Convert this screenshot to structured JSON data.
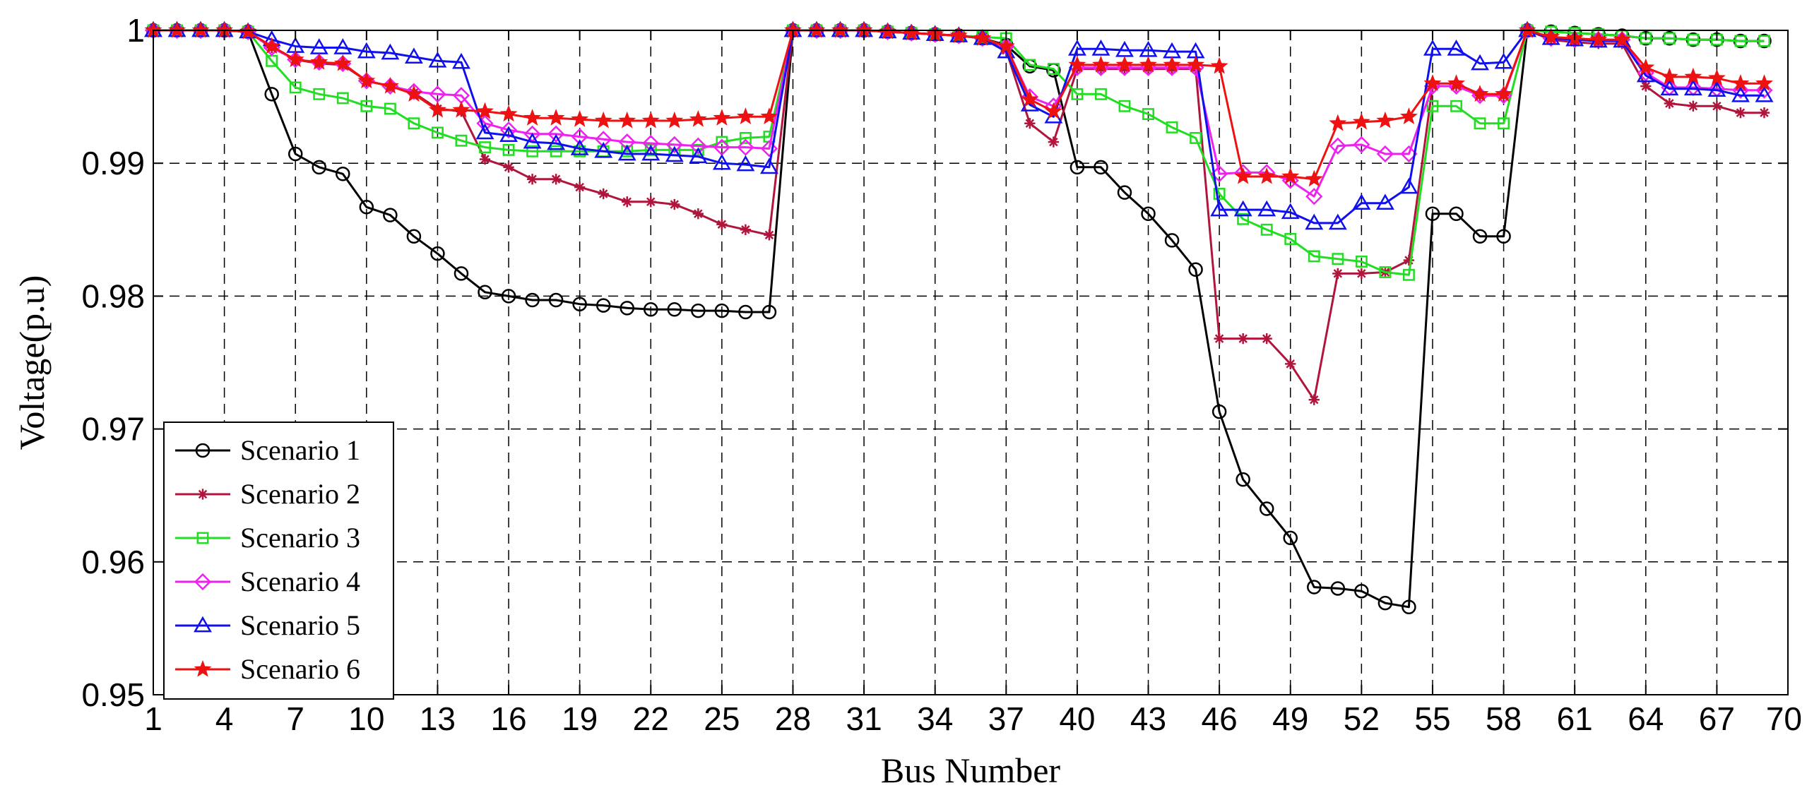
{
  "chart_data": {
    "type": "line",
    "xlabel": "Bus Number",
    "ylabel": "Voltage(p.u)",
    "xlim": [
      1,
      70
    ],
    "ylim": [
      0.95,
      1.0
    ],
    "xticks": [
      1,
      4,
      7,
      10,
      13,
      16,
      19,
      22,
      25,
      28,
      31,
      34,
      37,
      40,
      43,
      46,
      49,
      52,
      55,
      58,
      61,
      64,
      67,
      70
    ],
    "yticks": [
      0.95,
      0.96,
      0.97,
      0.98,
      0.99,
      1
    ],
    "ytick_labels": [
      "0.95",
      "0.96",
      "0.97",
      "0.98",
      "0.99",
      "1"
    ],
    "grid": true,
    "legend_position": "bottom-left",
    "x": [
      1,
      2,
      3,
      4,
      5,
      6,
      7,
      8,
      9,
      10,
      11,
      12,
      13,
      14,
      15,
      16,
      17,
      18,
      19,
      20,
      21,
      22,
      23,
      24,
      25,
      26,
      27,
      28,
      29,
      30,
      31,
      32,
      33,
      34,
      35,
      36,
      37,
      38,
      39,
      40,
      41,
      42,
      43,
      44,
      45,
      46,
      47,
      48,
      49,
      50,
      51,
      52,
      53,
      54,
      55,
      56,
      57,
      58,
      59,
      60,
      61,
      62,
      63,
      64,
      65,
      66,
      67,
      68,
      69
    ],
    "series": [
      {
        "name": "Scenario 1",
        "color": "#000000",
        "marker": "circle",
        "values": [
          1,
          1,
          1,
          1,
          0.9999,
          0.9952,
          0.9907,
          0.9897,
          0.9892,
          0.9867,
          0.9861,
          0.9845,
          0.9832,
          0.9817,
          0.9803,
          0.98,
          0.9797,
          0.9797,
          0.9794,
          0.9793,
          0.9791,
          0.979,
          0.979,
          0.9789,
          0.9789,
          0.9788,
          0.9788,
          1,
          1,
          1,
          1,
          0.9999,
          0.9998,
          0.9997,
          0.9996,
          0.9994,
          0.9989,
          0.9973,
          0.997,
          0.9897,
          0.9897,
          0.9878,
          0.9862,
          0.9842,
          0.982,
          0.9713,
          0.9662,
          0.964,
          0.9618,
          0.9581,
          0.958,
          0.9578,
          0.9569,
          0.9566,
          0.9862,
          0.9862,
          0.9845,
          0.9845,
          1,
          0.9999,
          0.9998,
          0.9997,
          0.9996,
          0.9994,
          0.9994,
          0.9993,
          0.9993,
          0.9992,
          0.9992
        ]
      },
      {
        "name": "Scenario 2",
        "color": "#b0153c",
        "marker": "asterisk",
        "values": [
          1,
          1,
          1,
          1,
          0.9999,
          0.9987,
          0.9978,
          0.9975,
          0.9974,
          0.9962,
          0.9958,
          0.9953,
          0.9941,
          0.9939,
          0.9903,
          0.9897,
          0.9888,
          0.9888,
          0.9882,
          0.9877,
          0.9871,
          0.9871,
          0.9869,
          0.9862,
          0.9854,
          0.985,
          0.9846,
          1,
          1,
          1,
          1,
          0.9999,
          0.9998,
          0.9997,
          0.9996,
          0.9994,
          0.9985,
          0.993,
          0.9916,
          0.9971,
          0.9971,
          0.9971,
          0.9971,
          0.9971,
          0.9971,
          0.9768,
          0.9768,
          0.9768,
          0.9749,
          0.9722,
          0.9817,
          0.9817,
          0.9818,
          0.9827,
          0.9958,
          0.9958,
          0.9951,
          0.9951,
          1,
          0.9993,
          0.9991,
          0.999,
          0.999,
          0.9958,
          0.9945,
          0.9943,
          0.9943,
          0.9938,
          0.9938
        ]
      },
      {
        "name": "Scenario 3",
        "color": "#22dd22",
        "marker": "square",
        "values": [
          1,
          1,
          1,
          1,
          0.9999,
          0.9977,
          0.9957,
          0.9952,
          0.9949,
          0.9943,
          0.9941,
          0.993,
          0.9923,
          0.9917,
          0.9912,
          0.991,
          0.9909,
          0.9909,
          0.9909,
          0.9909,
          0.9909,
          0.991,
          0.991,
          0.991,
          0.9916,
          0.9919,
          0.992,
          1,
          1,
          1,
          1,
          0.9999,
          0.9998,
          0.9997,
          0.9996,
          0.9995,
          0.9994,
          0.9974,
          0.9971,
          0.9952,
          0.9952,
          0.9943,
          0.9937,
          0.9927,
          0.9919,
          0.9877,
          0.9858,
          0.985,
          0.9843,
          0.983,
          0.9828,
          0.9826,
          0.9818,
          0.9816,
          0.9943,
          0.9943,
          0.993,
          0.993,
          1,
          0.9999,
          0.9998,
          0.9997,
          0.9996,
          0.9994,
          0.9994,
          0.9993,
          0.9993,
          0.9992,
          0.9992
        ]
      },
      {
        "name": "Scenario 4",
        "color": "#ee22ee",
        "marker": "diamond",
        "values": [
          1,
          1,
          1,
          1,
          0.9999,
          0.9987,
          0.9978,
          0.9976,
          0.9975,
          0.9962,
          0.9958,
          0.9954,
          0.9952,
          0.9951,
          0.993,
          0.9925,
          0.9922,
          0.9922,
          0.992,
          0.9918,
          0.9916,
          0.9915,
          0.9914,
          0.9913,
          0.9912,
          0.9912,
          0.9911,
          1,
          1,
          1,
          1,
          0.9999,
          0.9998,
          0.9997,
          0.9996,
          0.9994,
          0.9988,
          0.995,
          0.9943,
          0.9972,
          0.9972,
          0.9972,
          0.9972,
          0.9972,
          0.9972,
          0.9892,
          0.9893,
          0.9893,
          0.9887,
          0.9875,
          0.9913,
          0.9914,
          0.9907,
          0.9907,
          0.9958,
          0.9958,
          0.9951,
          0.9951,
          1,
          0.9994,
          0.9993,
          0.9993,
          0.9993,
          0.9968,
          0.9957,
          0.9957,
          0.9956,
          0.9955,
          0.9955
        ]
      },
      {
        "name": "Scenario 5",
        "color": "#1010ee",
        "marker": "triangle",
        "values": [
          1,
          1,
          1,
          1,
          0.9999,
          0.9993,
          0.9988,
          0.9987,
          0.9987,
          0.9984,
          0.9983,
          0.998,
          0.9977,
          0.9976,
          0.9923,
          0.9921,
          0.9916,
          0.9915,
          0.9911,
          0.9909,
          0.9907,
          0.9907,
          0.9906,
          0.9905,
          0.99,
          0.9899,
          0.9897,
          1,
          1,
          1,
          1,
          0.9999,
          0.9998,
          0.9997,
          0.9996,
          0.9994,
          0.9984,
          0.9944,
          0.9935,
          0.9986,
          0.9986,
          0.9985,
          0.9985,
          0.9984,
          0.9984,
          0.9865,
          0.9865,
          0.9865,
          0.9863,
          0.9855,
          0.9855,
          0.987,
          0.987,
          0.9882,
          0.9986,
          0.9986,
          0.9975,
          0.9976,
          1,
          0.9994,
          0.9993,
          0.9992,
          0.9992,
          0.9966,
          0.9956,
          0.9956,
          0.9955,
          0.9951,
          0.9951
        ]
      },
      {
        "name": "Scenario 6",
        "color": "#ee1111",
        "marker": "star",
        "values": [
          1,
          1,
          1,
          1,
          0.9999,
          0.9988,
          0.9978,
          0.9976,
          0.9975,
          0.9962,
          0.9958,
          0.9952,
          0.994,
          0.994,
          0.9939,
          0.9937,
          0.9934,
          0.9934,
          0.9933,
          0.9932,
          0.9932,
          0.9932,
          0.9932,
          0.9933,
          0.9934,
          0.9935,
          0.9935,
          1,
          1,
          1,
          1,
          0.9999,
          0.9998,
          0.9997,
          0.9996,
          0.9994,
          0.9988,
          0.9948,
          0.9939,
          0.9974,
          0.9974,
          0.9974,
          0.9974,
          0.9974,
          0.9974,
          0.9973,
          0.989,
          0.989,
          0.989,
          0.9888,
          0.993,
          0.9931,
          0.9932,
          0.9935,
          0.996,
          0.996,
          0.9952,
          0.9952,
          1,
          0.9995,
          0.9994,
          0.9993,
          0.9993,
          0.9972,
          0.9965,
          0.9965,
          0.9964,
          0.996,
          0.996
        ]
      }
    ]
  }
}
